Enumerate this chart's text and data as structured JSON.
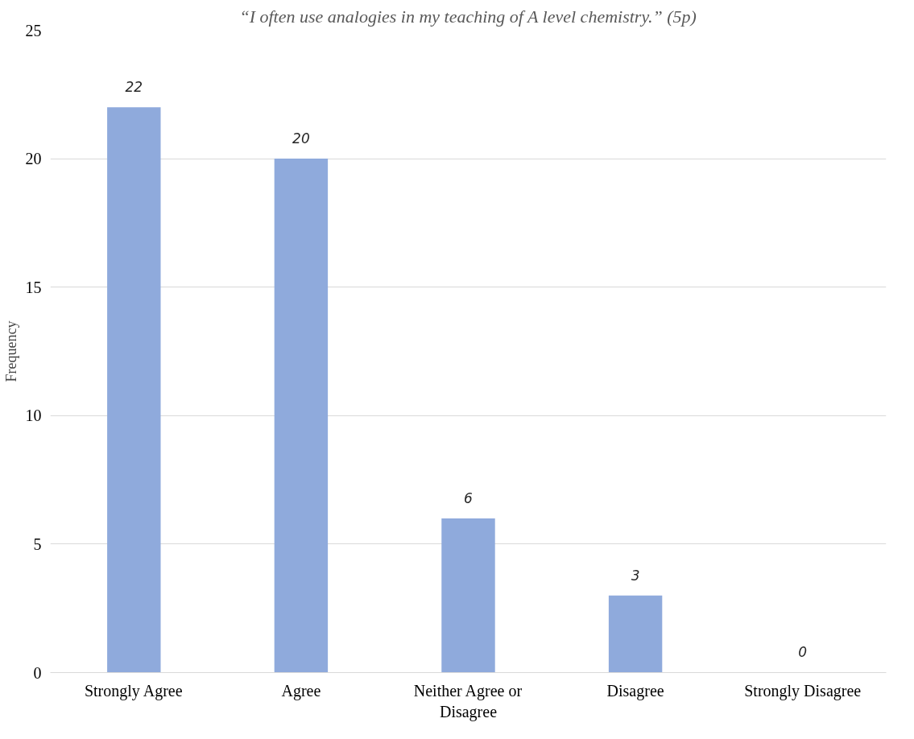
{
  "chart_data": {
    "type": "bar",
    "title": "“I often use analogies in my teaching of A level chemistry.” (5p)",
    "ylabel": "Frequency",
    "categories": [
      "Strongly Agree",
      "Agree",
      "Neither Agree or Disagree",
      "Disagree",
      "Strongly Disagree"
    ],
    "values": [
      22,
      20,
      6,
      3,
      0
    ],
    "color": "#8faadc",
    "ylim": [
      0,
      25
    ],
    "yticks": [
      0,
      5,
      10,
      15,
      20,
      25
    ],
    "grid": "y",
    "data_labels": true
  }
}
